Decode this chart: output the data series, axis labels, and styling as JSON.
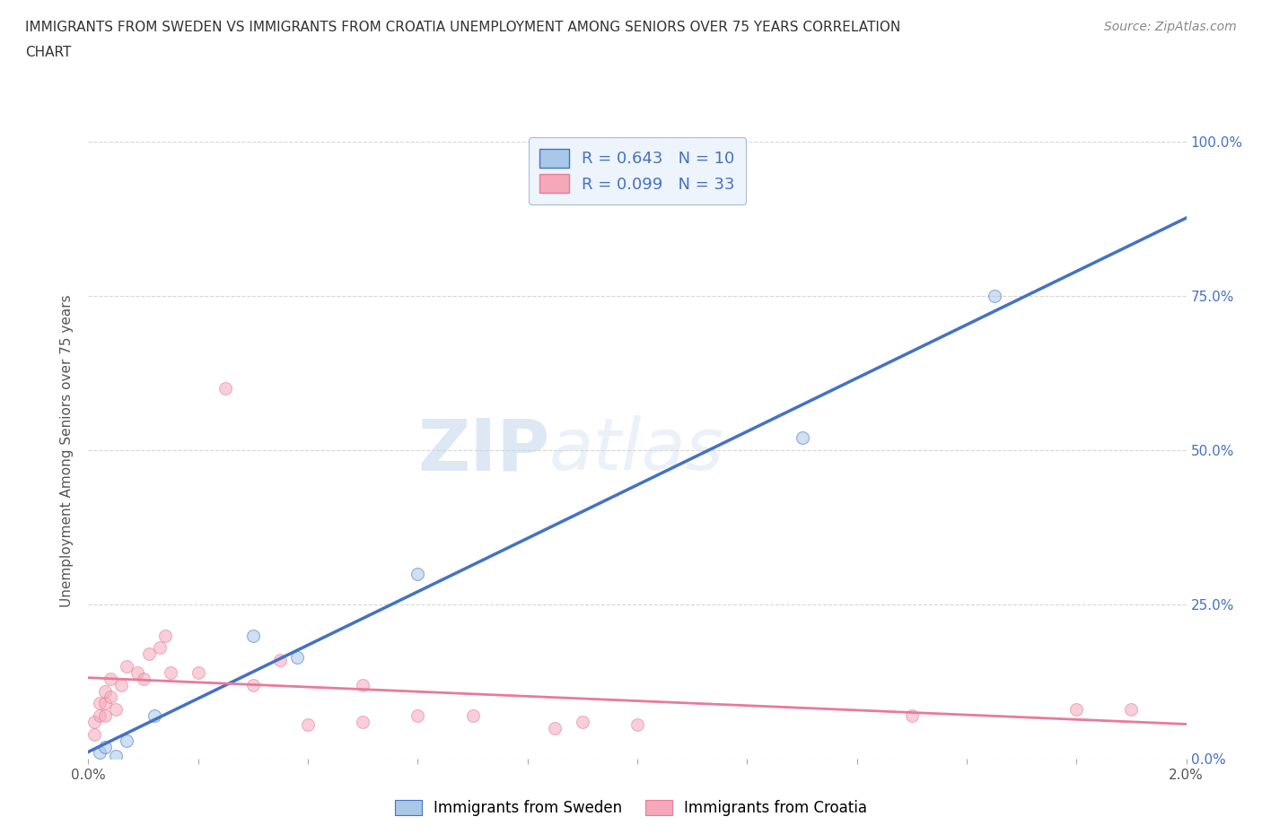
{
  "title_line1": "IMMIGRANTS FROM SWEDEN VS IMMIGRANTS FROM CROATIA UNEMPLOYMENT AMONG SENIORS OVER 75 YEARS CORRELATION",
  "title_line2": "CHART",
  "source": "Source: ZipAtlas.com",
  "ylabel": "Unemployment Among Seniors over 75 years",
  "xlim": [
    0.0,
    0.02
  ],
  "ylim": [
    0.0,
    1.0
  ],
  "xticks": [
    0.0,
    0.002,
    0.004,
    0.006,
    0.008,
    0.01,
    0.012,
    0.014,
    0.016,
    0.018,
    0.02
  ],
  "yticks": [
    0.0,
    0.25,
    0.5,
    0.75,
    1.0
  ],
  "yticklabels": [
    "0.0%",
    "25.0%",
    "50.0%",
    "75.0%",
    "100.0%"
  ],
  "sweden_color": "#A8C8E8",
  "croatia_color": "#F4A8B8",
  "sweden_line_color": "#4472C4",
  "croatia_line_color": "#E87A9A",
  "sweden_R": 0.643,
  "sweden_N": 10,
  "croatia_R": 0.099,
  "croatia_N": 33,
  "sweden_x": [
    0.0002,
    0.0003,
    0.0005,
    0.0007,
    0.0012,
    0.003,
    0.0038,
    0.006,
    0.013,
    0.0165
  ],
  "sweden_y": [
    0.01,
    0.02,
    0.005,
    0.03,
    0.07,
    0.2,
    0.165,
    0.3,
    0.52,
    0.75
  ],
  "croatia_x": [
    0.0001,
    0.0001,
    0.0002,
    0.0002,
    0.0003,
    0.0003,
    0.0003,
    0.0004,
    0.0004,
    0.0005,
    0.0006,
    0.0007,
    0.0009,
    0.001,
    0.0011,
    0.0013,
    0.0014,
    0.0015,
    0.002,
    0.0025,
    0.003,
    0.0035,
    0.004,
    0.005,
    0.005,
    0.006,
    0.007,
    0.0085,
    0.009,
    0.01,
    0.015,
    0.018,
    0.019
  ],
  "croatia_y": [
    0.04,
    0.06,
    0.07,
    0.09,
    0.07,
    0.09,
    0.11,
    0.1,
    0.13,
    0.08,
    0.12,
    0.15,
    0.14,
    0.13,
    0.17,
    0.18,
    0.2,
    0.14,
    0.14,
    0.6,
    0.12,
    0.16,
    0.055,
    0.06,
    0.12,
    0.07,
    0.07,
    0.05,
    0.06,
    0.055,
    0.07,
    0.08,
    0.08
  ],
  "watermark_zip": "ZIP",
  "watermark_atlas": "atlas",
  "background_color": "#FFFFFF",
  "grid_color": "#CCCCCC",
  "marker_size": 100,
  "marker_alpha": 0.55,
  "legend_box_color": "#EEF4FC",
  "legend_edge_color": "#AABBD0"
}
